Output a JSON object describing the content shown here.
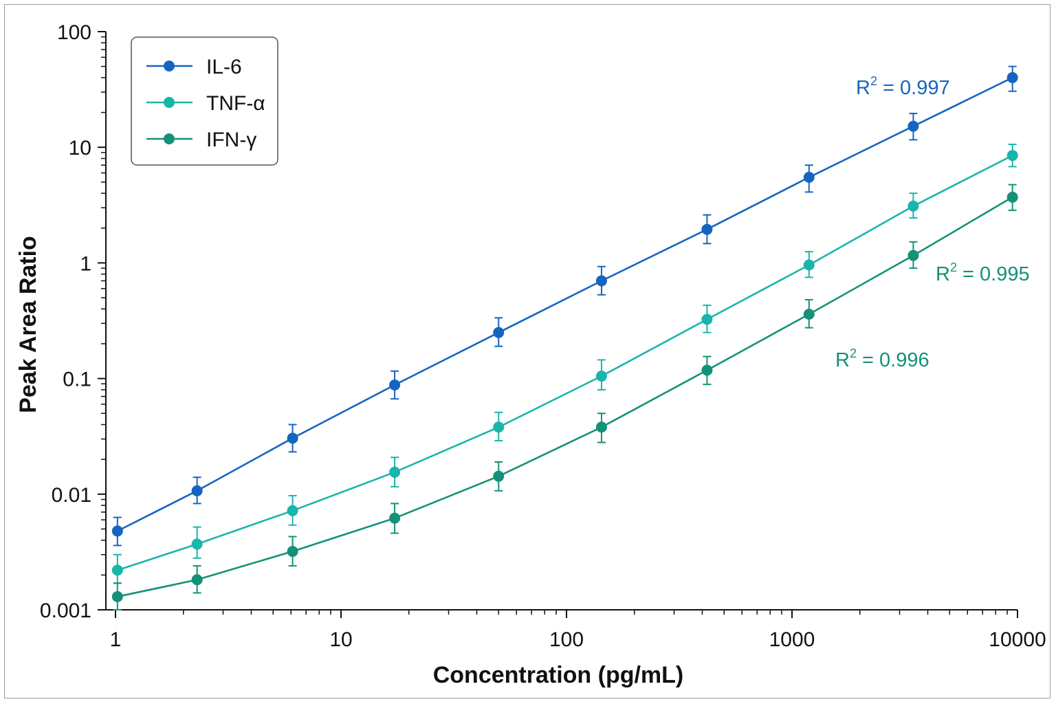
{
  "chart_data": {
    "type": "line",
    "xscale": "log",
    "yscale": "log",
    "xlabel": "Concentration (pg/mL)",
    "ylabel": "Peak Area Ratio",
    "xlim": [
      1,
      10000
    ],
    "ylim": [
      0.001,
      100
    ],
    "x_ticks": [
      {
        "value": 1,
        "label": "1"
      },
      {
        "value": 10,
        "label": "10"
      },
      {
        "value": 100,
        "label": "100"
      },
      {
        "value": 1000,
        "label": "1000"
      },
      {
        "value": 10000,
        "label": "10000"
      }
    ],
    "y_ticks": [
      {
        "value": 0.001,
        "label": "0.001"
      },
      {
        "value": 0.01,
        "label": "0.01"
      },
      {
        "value": 0.1,
        "label": "0.1"
      },
      {
        "value": 1,
        "label": "1"
      },
      {
        "value": 10,
        "label": "10"
      },
      {
        "value": 100,
        "label": "100"
      }
    ],
    "x": [
      1.02,
      2.3,
      6.1,
      17.3,
      50,
      143,
      420,
      1190,
      3450,
      9500
    ],
    "series": [
      {
        "name": "IL-6",
        "color": "#1565c0",
        "values": [
          0.0048,
          0.0107,
          0.0305,
          0.088,
          0.25,
          0.7,
          1.95,
          5.5,
          15.2,
          40
        ],
        "err_lo": [
          0.0036,
          0.0083,
          0.0232,
          0.0667,
          0.19,
          0.53,
          1.47,
          4.1,
          11.6,
          30.5
        ],
        "err_hi": [
          0.0063,
          0.014,
          0.04,
          0.116,
          0.335,
          0.93,
          2.6,
          7.0,
          19.6,
          50
        ],
        "r2_label": "R",
        "r2_value": "0.997"
      },
      {
        "name": "TNF-α",
        "color": "#1ab5aa",
        "values": [
          0.0022,
          0.0037,
          0.0072,
          0.0155,
          0.038,
          0.105,
          0.325,
          0.96,
          3.1,
          8.5
        ],
        "err_lo": [
          0.0017,
          0.0028,
          0.0054,
          0.0116,
          0.029,
          0.08,
          0.25,
          0.75,
          2.45,
          6.8
        ],
        "err_hi": [
          0.003,
          0.0052,
          0.0097,
          0.0208,
          0.051,
          0.145,
          0.43,
          1.25,
          4.0,
          10.6
        ],
        "r2_label": "R",
        "r2_value": "0.995"
      },
      {
        "name": "IFN-γ",
        "color": "#149178",
        "values": [
          0.0013,
          0.00182,
          0.0032,
          0.0062,
          0.0143,
          0.038,
          0.118,
          0.36,
          1.16,
          3.7
        ],
        "err_lo": [
          0.001,
          0.0014,
          0.0024,
          0.0046,
          0.0107,
          0.028,
          0.089,
          0.275,
          0.9,
          2.85
        ],
        "err_hi": [
          0.0017,
          0.0024,
          0.0043,
          0.0083,
          0.019,
          0.05,
          0.155,
          0.48,
          1.52,
          4.75
        ],
        "r2_label": "R",
        "r2_value": "0.996"
      }
    ],
    "legend_position": "top-left",
    "grid": false
  },
  "annotations": {
    "il6_r2": "R² = 0.997",
    "tnf_r2": "R² = 0.995",
    "ifn_r2": "R² = 0.996"
  }
}
